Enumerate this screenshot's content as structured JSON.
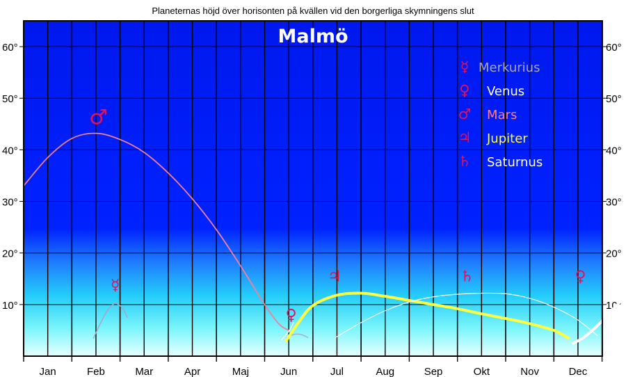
{
  "chart_data": {
    "type": "line",
    "title": "Planeternas höjd över horisonten på kvällen vid den borgerliga skymningens slut",
    "subtitle": "Malmö",
    "x_categories": [
      "Jan",
      "Feb",
      "Mar",
      "Apr",
      "Maj",
      "Jun",
      "Jul",
      "Aug",
      "Sep",
      "Okt",
      "Nov",
      "Dec"
    ],
    "y_ticks": [
      "10°",
      "20°",
      "30°",
      "40°",
      "50°",
      "60°"
    ],
    "ylim": [
      0,
      65
    ],
    "xlim": [
      0,
      12
    ],
    "grid": true,
    "legend_position": "top-right",
    "legend": [
      {
        "symbol": "☿",
        "label": "Merkurius",
        "color": "#a6a6c8"
      },
      {
        "symbol": "♀",
        "label": "Venus",
        "color": "#ffffff"
      },
      {
        "symbol": "♂",
        "label": "Mars",
        "color": "#ff8090"
      },
      {
        "symbol": "♃",
        "label": "Jupiter",
        "color": "#ffff40"
      },
      {
        "symbol": "♄",
        "label": "Saturnus",
        "color": "#ffffff"
      }
    ],
    "series": [
      {
        "name": "Mars",
        "color": "#f080a0",
        "width": 1.8,
        "symbol": "♂",
        "symbol_at": [
          1.55,
          45
        ],
        "points": [
          [
            0,
            33
          ],
          [
            0.5,
            38.5
          ],
          [
            1,
            42.2
          ],
          [
            1.5,
            43.2
          ],
          [
            2,
            42
          ],
          [
            2.5,
            39.5
          ],
          [
            3,
            35.5
          ],
          [
            3.5,
            30.5
          ],
          [
            4,
            24.5
          ],
          [
            4.5,
            17.5
          ],
          [
            5,
            10
          ],
          [
            5.3,
            6.2
          ],
          [
            5.5,
            5
          ]
        ]
      },
      {
        "name": "Merkurius",
        "color": "#a6a6c8",
        "width": 1.5,
        "symbol": "☿",
        "symbol_at": [
          1.9,
          12.8
        ],
        "points": [
          [
            1.45,
            3.5
          ],
          [
            1.6,
            6.5
          ],
          [
            1.75,
            9
          ],
          [
            1.9,
            10.2
          ],
          [
            2.05,
            9.3
          ],
          [
            2.15,
            7.5
          ]
        ]
      },
      {
        "name": "Merkurius",
        "color": "#a6a6c8",
        "width": 1.2,
        "points": [
          [
            5.45,
            3.5
          ],
          [
            5.6,
            4.2
          ],
          [
            5.75,
            4.2
          ],
          [
            5.9,
            3.6
          ]
        ]
      },
      {
        "name": "Venus",
        "color": "#ffffff",
        "width": 1.5,
        "symbol": "♀",
        "symbol_at": [
          5.55,
          7
        ],
        "points": [
          [
            5.35,
            3.2
          ],
          [
            5.5,
            4.8
          ],
          [
            5.6,
            6.5
          ]
        ]
      },
      {
        "name": "Jupiter",
        "color": "#ffff40",
        "width": 4,
        "symbol": "♃",
        "symbol_at": [
          6.45,
          14.5
        ],
        "points": [
          [
            5.45,
            3
          ],
          [
            5.7,
            6.5
          ],
          [
            6,
            9.8
          ],
          [
            6.5,
            11.8
          ],
          [
            7,
            12.2
          ],
          [
            7.5,
            11.6
          ],
          [
            8,
            10.8
          ],
          [
            8.5,
            10
          ],
          [
            9,
            9.2
          ],
          [
            9.5,
            8.2
          ],
          [
            10,
            7.3
          ],
          [
            10.5,
            6.3
          ],
          [
            11,
            5
          ],
          [
            11.3,
            3.5
          ]
        ]
      },
      {
        "name": "Saturnus",
        "color": "#ffffff",
        "width": 1.2,
        "symbol": "♄",
        "symbol_at": [
          9.2,
          14.5
        ],
        "points": [
          [
            6.45,
            3.5
          ],
          [
            7,
            6.5
          ],
          [
            7.5,
            8.8
          ],
          [
            8,
            10.5
          ],
          [
            8.5,
            11.5
          ],
          [
            9,
            12
          ],
          [
            9.5,
            12.2
          ],
          [
            10,
            12.1
          ],
          [
            10.5,
            11.2
          ],
          [
            11,
            9.5
          ],
          [
            11.5,
            7
          ],
          [
            11.9,
            4
          ]
        ]
      },
      {
        "name": "Venus",
        "color": "#ffffff",
        "width": 4,
        "symbol": "♀",
        "symbol_at": [
          11.55,
          14.5
        ],
        "points": [
          [
            11.4,
            2.5
          ],
          [
            11.6,
            3.5
          ],
          [
            11.8,
            5
          ],
          [
            12,
            6.8
          ],
          [
            12.2,
            8.8
          ],
          [
            12.4,
            10.8
          ],
          [
            12.5,
            12.2
          ]
        ]
      }
    ]
  }
}
